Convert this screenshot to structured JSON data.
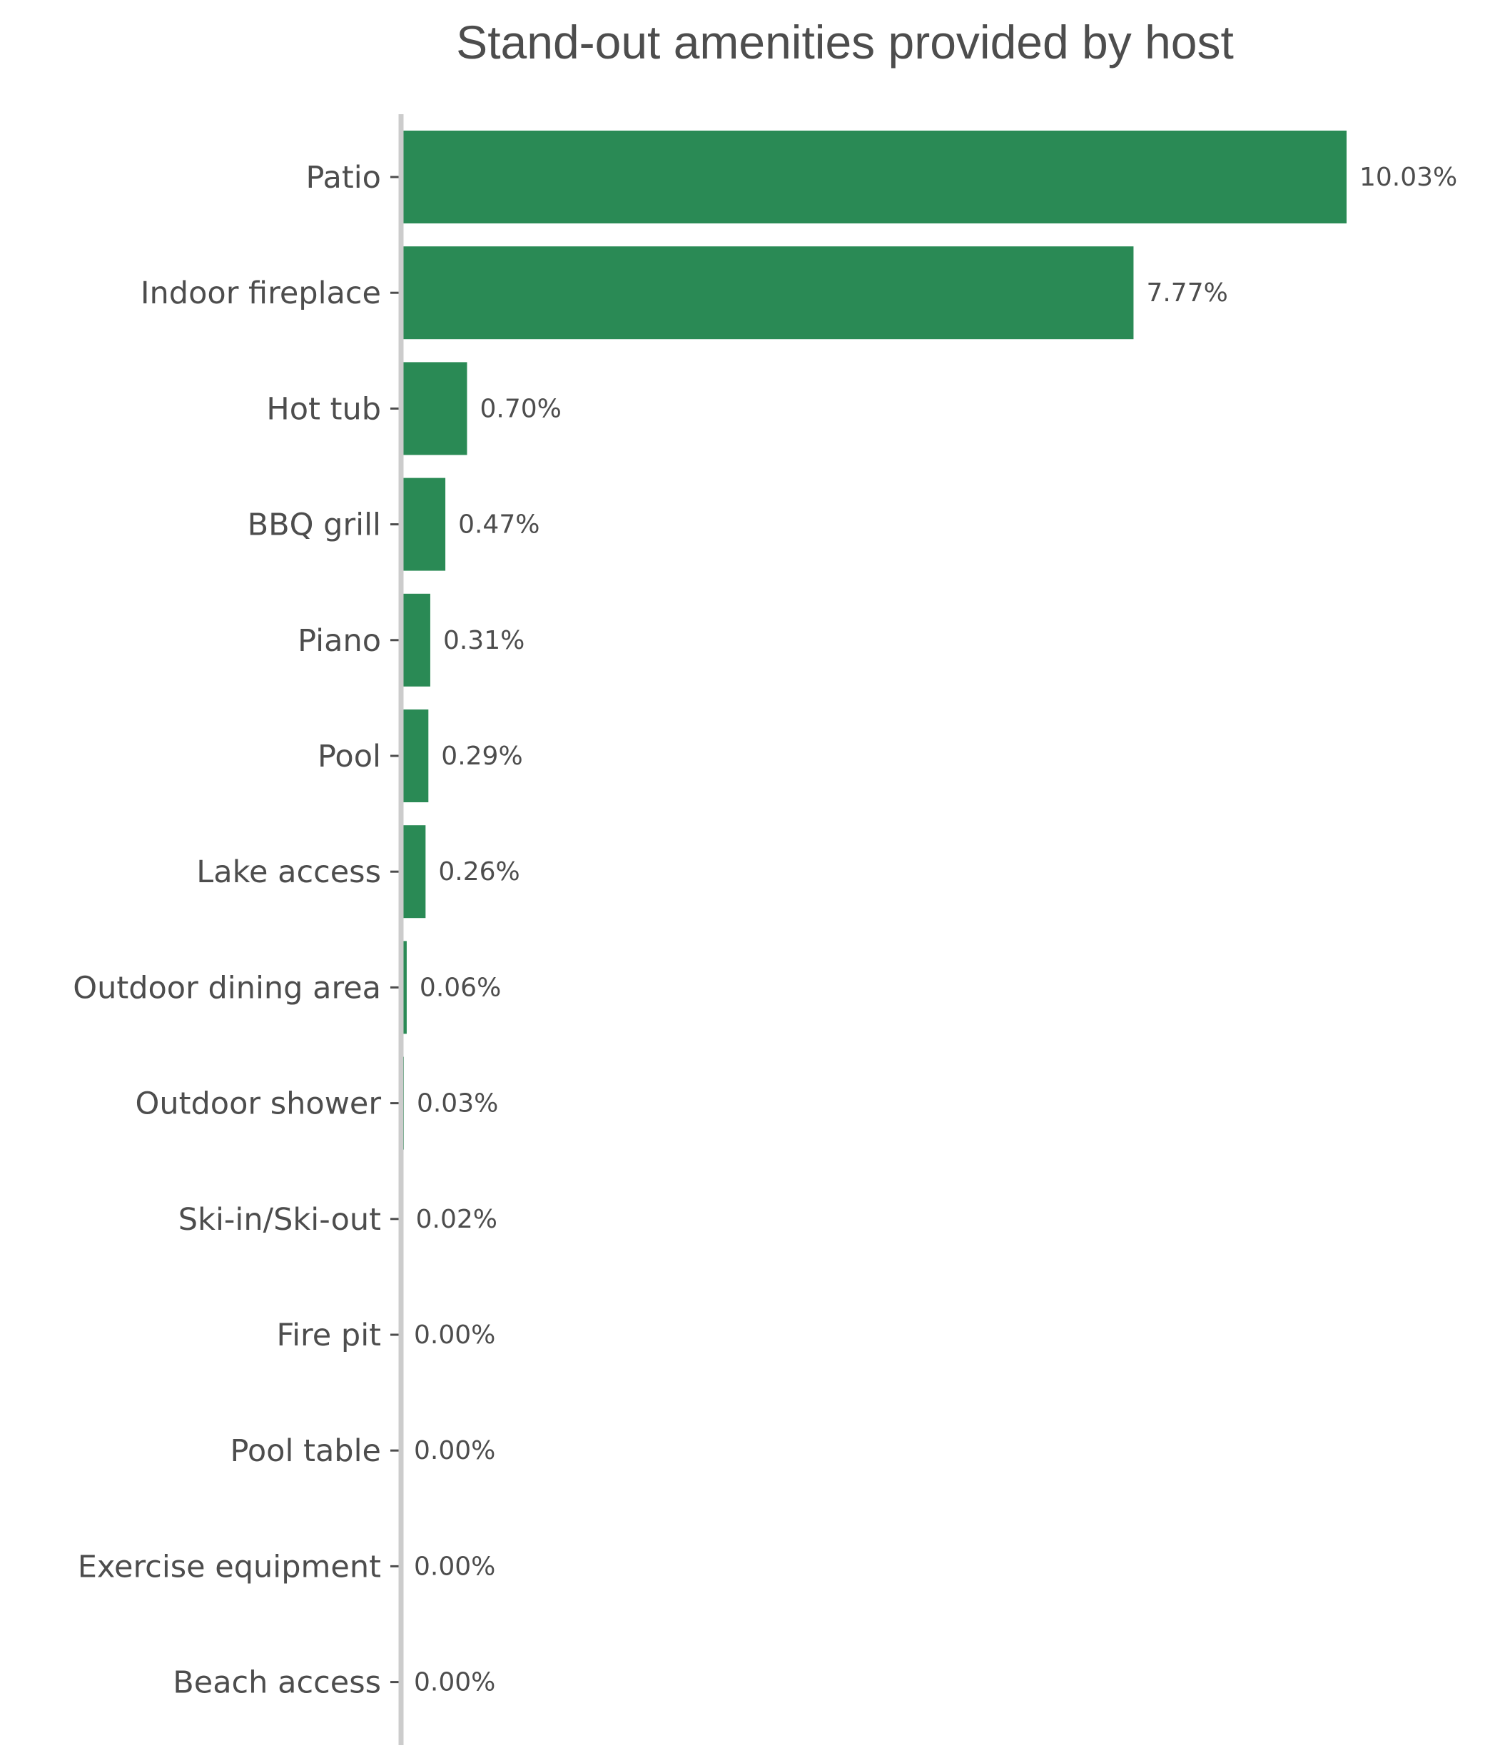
{
  "chart_data": {
    "type": "bar",
    "orientation": "horizontal",
    "title": "Stand-out amenities provided by host",
    "xlabel": "",
    "ylabel": "",
    "categories": [
      "Patio",
      "Indoor fireplace",
      "Hot tub",
      "BBQ grill",
      "Piano",
      "Pool",
      "Lake access",
      "Outdoor dining area",
      "Outdoor shower",
      "Ski-in/Ski-out",
      "Fire pit",
      "Pool table",
      "Exercise equipment",
      "Beach access"
    ],
    "values": [
      10.03,
      7.77,
      0.7,
      0.47,
      0.31,
      0.29,
      0.26,
      0.06,
      0.03,
      0.02,
      0.0,
      0.0,
      0.0,
      0.0
    ],
    "value_labels": [
      "10.03%",
      "7.77%",
      "0.70%",
      "0.47%",
      "0.31%",
      "0.29%",
      "0.26%",
      "0.06%",
      "0.03%",
      "0.02%",
      "0.00%",
      "0.00%",
      "0.00%",
      "0.00%"
    ],
    "xlim": [
      0,
      10.03
    ],
    "grid": false,
    "legend": "none",
    "colors": {
      "bar": "#2a8a55",
      "axis": "#cccccc",
      "text": "#4d4d4d"
    }
  }
}
